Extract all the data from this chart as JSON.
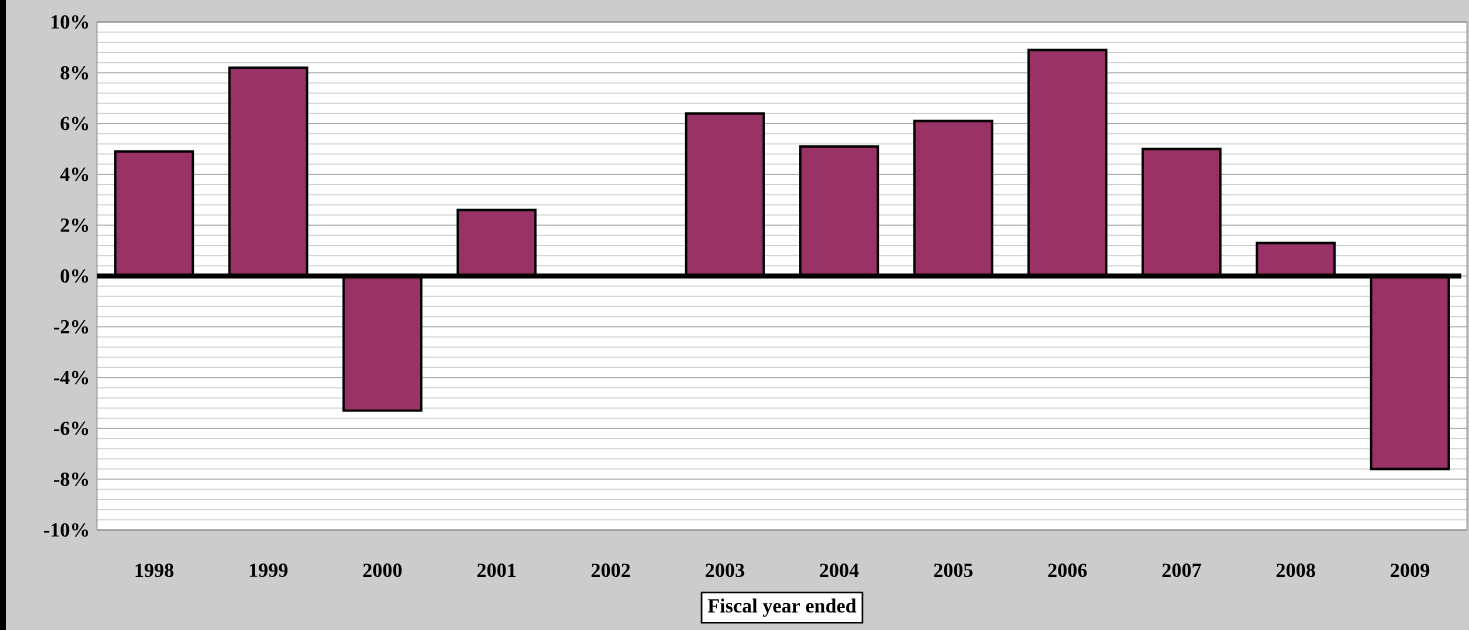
{
  "chart_data": {
    "type": "bar",
    "xlabel": "Fiscal year ended",
    "categories": [
      "1998",
      "1999",
      "2000",
      "2001",
      "2002",
      "2003",
      "2004",
      "2005",
      "2006",
      "2007",
      "2008",
      "2009"
    ],
    "values": [
      4.9,
      8.2,
      -5.3,
      2.6,
      null,
      6.4,
      5.1,
      6.1,
      8.9,
      5.0,
      1.3,
      -7.6
    ],
    "color": "#993366",
    "ylim": [
      -10,
      10
    ],
    "yticks": [
      {
        "value": -10,
        "label": "-10%"
      },
      {
        "value": -8,
        "label": "-8%"
      },
      {
        "value": -6,
        "label": "-6%"
      },
      {
        "value": -4,
        "label": "-4%"
      },
      {
        "value": -2,
        "label": "-2%"
      },
      {
        "value": 0,
        "label": "0%"
      },
      {
        "value": 2,
        "label": "2%"
      },
      {
        "value": 4,
        "label": "4%"
      },
      {
        "value": 6,
        "label": "6%"
      },
      {
        "value": 8,
        "label": "8%"
      },
      {
        "value": 10,
        "label": "10%"
      }
    ],
    "grid": "y"
  }
}
